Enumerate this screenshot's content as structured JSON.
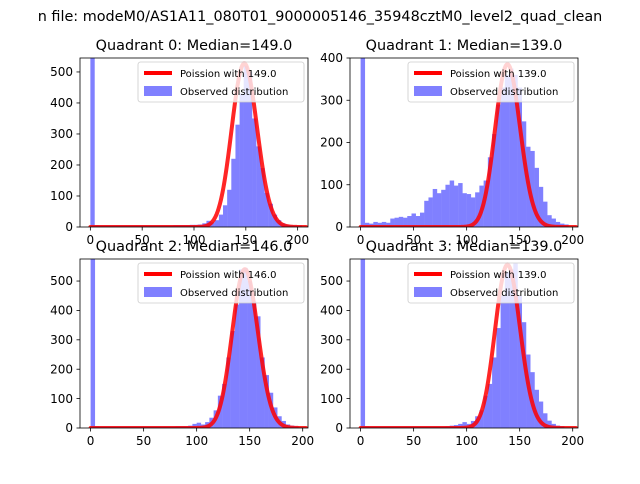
{
  "suptitle": "n file: modeM0/AS1A11_080T01_9000005146_35948cztM0_level2_quad_clean",
  "colors": {
    "hist": "#8080ff",
    "fit": "#ff0000",
    "background": "#ffffff",
    "axis": "#000000"
  },
  "chart_data": [
    {
      "type": "histogram",
      "title": "Quadrant 0: Median=149.0",
      "xlim": [
        -10,
        210
      ],
      "ylim": [
        0,
        545
      ],
      "xticks": [
        0,
        50,
        100,
        150,
        200
      ],
      "yticks": [
        0,
        100,
        200,
        300,
        400,
        500
      ],
      "legend": {
        "placement": "top-right",
        "fit_label": "Poission with 149.0",
        "hist_label": "Observed distribution"
      },
      "poisson_mean": 149.0,
      "poisson_peak": 527,
      "bin_width": 4.2,
      "bins": [
        [
          0,
          545
        ],
        [
          4,
          6
        ],
        [
          8,
          5
        ],
        [
          12,
          5
        ],
        [
          16,
          5
        ],
        [
          20,
          5
        ],
        [
          24,
          5
        ],
        [
          28,
          5
        ],
        [
          32,
          5
        ],
        [
          36,
          5
        ],
        [
          40,
          5
        ],
        [
          44,
          5
        ],
        [
          48,
          5
        ],
        [
          52,
          5
        ],
        [
          56,
          5
        ],
        [
          60,
          5
        ],
        [
          64,
          5
        ],
        [
          68,
          5
        ],
        [
          72,
          5
        ],
        [
          76,
          5
        ],
        [
          80,
          6
        ],
        [
          84,
          6
        ],
        [
          88,
          6
        ],
        [
          92,
          6
        ],
        [
          96,
          7
        ],
        [
          100,
          7
        ],
        [
          104,
          8
        ],
        [
          108,
          12
        ],
        [
          112,
          20
        ],
        [
          116,
          15
        ],
        [
          120,
          22
        ],
        [
          124,
          40
        ],
        [
          128,
          70
        ],
        [
          132,
          120
        ],
        [
          136,
          220
        ],
        [
          140,
          330
        ],
        [
          144,
          430
        ],
        [
          148,
          520
        ],
        [
          152,
          500
        ],
        [
          156,
          350
        ],
        [
          160,
          260
        ],
        [
          164,
          190
        ],
        [
          168,
          110
        ],
        [
          172,
          75
        ],
        [
          176,
          40
        ],
        [
          180,
          22
        ],
        [
          184,
          12
        ],
        [
          188,
          8
        ],
        [
          192,
          6
        ],
        [
          196,
          5
        ],
        [
          200,
          5
        ]
      ]
    },
    {
      "type": "histogram",
      "title": "Quadrant 1: Median=139.0",
      "xlim": [
        -10,
        205
      ],
      "ylim": [
        0,
        400
      ],
      "xticks": [
        0,
        50,
        100,
        150,
        200
      ],
      "yticks": [
        0,
        100,
        200,
        300,
        400
      ],
      "legend": {
        "placement": "top-right",
        "fit_label": "Poission with 139.0",
        "hist_label": "Observed distribution"
      },
      "poisson_mean": 139.0,
      "poisson_peak": 385,
      "bin_width": 4.2,
      "bins": [
        [
          0,
          400
        ],
        [
          4,
          10
        ],
        [
          8,
          8
        ],
        [
          12,
          12
        ],
        [
          16,
          10
        ],
        [
          20,
          12
        ],
        [
          24,
          10
        ],
        [
          28,
          20
        ],
        [
          32,
          22
        ],
        [
          36,
          24
        ],
        [
          40,
          22
        ],
        [
          44,
          26
        ],
        [
          48,
          32
        ],
        [
          52,
          26
        ],
        [
          56,
          34
        ],
        [
          60,
          62
        ],
        [
          64,
          70
        ],
        [
          68,
          90
        ],
        [
          72,
          80
        ],
        [
          76,
          88
        ],
        [
          80,
          100
        ],
        [
          84,
          110
        ],
        [
          88,
          98
        ],
        [
          92,
          104
        ],
        [
          96,
          80
        ],
        [
          100,
          78
        ],
        [
          104,
          70
        ],
        [
          108,
          82
        ],
        [
          112,
          98
        ],
        [
          116,
          110
        ],
        [
          120,
          165
        ],
        [
          124,
          220
        ],
        [
          128,
          290
        ],
        [
          132,
          330
        ],
        [
          136,
          360
        ],
        [
          140,
          375
        ],
        [
          144,
          360
        ],
        [
          148,
          330
        ],
        [
          152,
          250
        ],
        [
          156,
          190
        ],
        [
          160,
          180
        ],
        [
          164,
          140
        ],
        [
          168,
          95
        ],
        [
          172,
          60
        ],
        [
          176,
          28
        ],
        [
          180,
          20
        ],
        [
          184,
          12
        ],
        [
          188,
          8
        ],
        [
          192,
          6
        ]
      ]
    },
    {
      "type": "histogram",
      "title": "Quadrant 2: Median=146.0",
      "xlim": [
        -10,
        205
      ],
      "ylim": [
        0,
        575
      ],
      "xticks": [
        0,
        50,
        100,
        150,
        200
      ],
      "yticks": [
        0,
        100,
        200,
        300,
        400,
        500
      ],
      "legend": {
        "placement": "top-right",
        "fit_label": "Poission with 146.0",
        "hist_label": "Observed distribution"
      },
      "poisson_mean": 146.0,
      "poisson_peak": 540,
      "bin_width": 4.2,
      "bins": [
        [
          0,
          575
        ],
        [
          4,
          6
        ],
        [
          8,
          5
        ],
        [
          12,
          5
        ],
        [
          16,
          5
        ],
        [
          20,
          5
        ],
        [
          24,
          5
        ],
        [
          28,
          5
        ],
        [
          32,
          5
        ],
        [
          36,
          5
        ],
        [
          40,
          5
        ],
        [
          44,
          5
        ],
        [
          48,
          5
        ],
        [
          52,
          5
        ],
        [
          56,
          5
        ],
        [
          60,
          5
        ],
        [
          64,
          5
        ],
        [
          68,
          5
        ],
        [
          72,
          5
        ],
        [
          76,
          5
        ],
        [
          80,
          6
        ],
        [
          84,
          6
        ],
        [
          88,
          6
        ],
        [
          92,
          8
        ],
        [
          96,
          14
        ],
        [
          100,
          18
        ],
        [
          104,
          12
        ],
        [
          108,
          20
        ],
        [
          112,
          35
        ],
        [
          116,
          60
        ],
        [
          120,
          110
        ],
        [
          124,
          150
        ],
        [
          128,
          240
        ],
        [
          132,
          330
        ],
        [
          136,
          420
        ],
        [
          140,
          540
        ],
        [
          144,
          545
        ],
        [
          148,
          500
        ],
        [
          152,
          430
        ],
        [
          156,
          380
        ],
        [
          160,
          240
        ],
        [
          164,
          180
        ],
        [
          168,
          120
        ],
        [
          172,
          70
        ],
        [
          176,
          40
        ],
        [
          180,
          24
        ],
        [
          184,
          12
        ],
        [
          188,
          8
        ],
        [
          192,
          6
        ]
      ]
    },
    {
      "type": "histogram",
      "title": "Quadrant 3: Median=139.0",
      "xlim": [
        -10,
        205
      ],
      "ylim": [
        0,
        575
      ],
      "xticks": [
        0,
        50,
        100,
        150,
        200
      ],
      "yticks": [
        0,
        100,
        200,
        300,
        400,
        500
      ],
      "legend": {
        "placement": "top-right",
        "fit_label": "Poission with 139.0",
        "hist_label": "Observed distribution"
      },
      "poisson_mean": 139.0,
      "poisson_peak": 555,
      "bin_width": 4.2,
      "bins": [
        [
          0,
          575
        ],
        [
          4,
          6
        ],
        [
          8,
          5
        ],
        [
          12,
          5
        ],
        [
          16,
          5
        ],
        [
          20,
          5
        ],
        [
          24,
          5
        ],
        [
          28,
          5
        ],
        [
          32,
          5
        ],
        [
          36,
          5
        ],
        [
          40,
          5
        ],
        [
          44,
          5
        ],
        [
          48,
          5
        ],
        [
          52,
          5
        ],
        [
          56,
          5
        ],
        [
          60,
          5
        ],
        [
          64,
          5
        ],
        [
          68,
          5
        ],
        [
          72,
          5
        ],
        [
          76,
          5
        ],
        [
          80,
          6
        ],
        [
          84,
          8
        ],
        [
          88,
          10
        ],
        [
          92,
          14
        ],
        [
          96,
          20
        ],
        [
          100,
          14
        ],
        [
          104,
          24
        ],
        [
          108,
          40
        ],
        [
          112,
          60
        ],
        [
          116,
          110
        ],
        [
          120,
          150
        ],
        [
          124,
          240
        ],
        [
          128,
          340
        ],
        [
          132,
          450
        ],
        [
          136,
          530
        ],
        [
          140,
          540
        ],
        [
          144,
          560
        ],
        [
          148,
          450
        ],
        [
          152,
          360
        ],
        [
          156,
          250
        ],
        [
          160,
          190
        ],
        [
          164,
          130
        ],
        [
          168,
          90
        ],
        [
          172,
          50
        ],
        [
          176,
          25
        ],
        [
          180,
          14
        ],
        [
          184,
          8
        ],
        [
          188,
          6
        ]
      ]
    }
  ]
}
